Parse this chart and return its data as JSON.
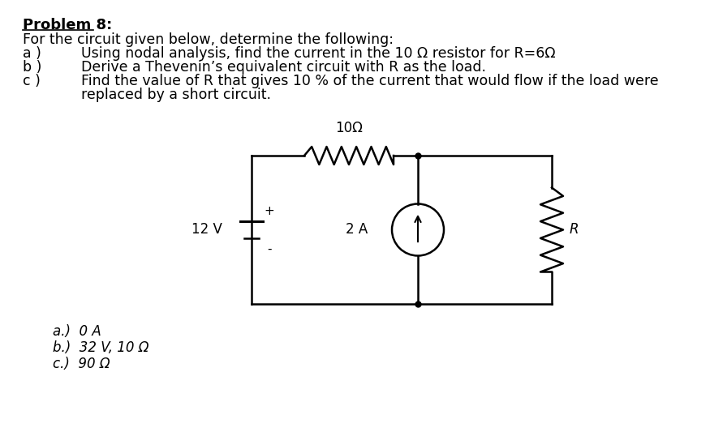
{
  "title": "Problem 8:",
  "intro": "For the circuit given below, determine the following:",
  "item_a_label": "a )",
  "item_a_text": "Using nodal analysis, find the current in the 10 Ω resistor for R=6Ω",
  "item_b_label": "b )",
  "item_b_text": "Derive a Thevenin’s equivalent circuit with R as the load.",
  "item_c_label": "c )",
  "item_c_text": "Find the value of R that gives 10 % of the current that would flow if the load were",
  "item_c_wrap": "replaced by a short circuit.",
  "ans_a": "a.)  0 A",
  "ans_b": "b.)  32 V, 10 Ω",
  "ans_c": "c.)  90 Ω",
  "bg_color": "#ffffff",
  "text_color": "#000000",
  "resistor_label": "10Ω",
  "voltage_label": "12 V",
  "current_label": "2 A",
  "load_label": "R",
  "plus_sign": "+",
  "minus_sign": "-"
}
